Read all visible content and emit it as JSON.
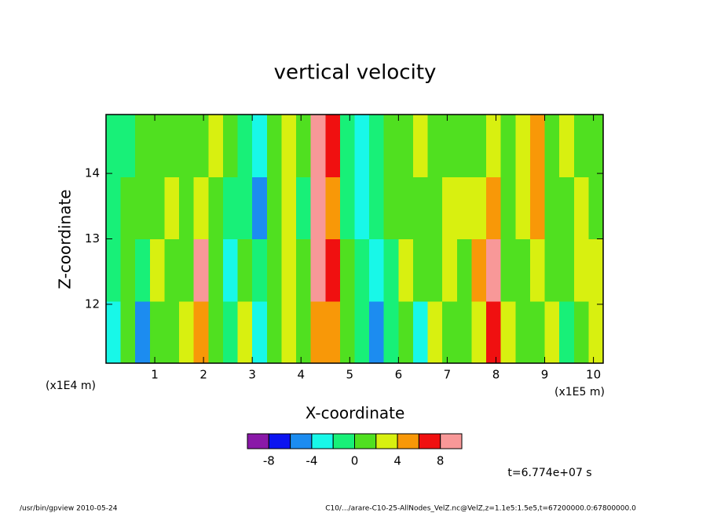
{
  "chart_data": {
    "type": "heatmap",
    "title": "vertical velocity",
    "x_label": "X-coordinate",
    "y_label": "Z-coordinate",
    "x_unit": "(x1E5 m)",
    "y_unit": "(x1E4 m)",
    "x": [
      0.15,
      0.45,
      0.75,
      1.05,
      1.35,
      1.65,
      1.95,
      2.25,
      2.55,
      2.85,
      3.15,
      3.45,
      3.75,
      4.05,
      4.35,
      4.65,
      4.95,
      5.25,
      5.55,
      5.85,
      6.15,
      6.45,
      6.75,
      7.05,
      7.35,
      7.65,
      7.95,
      8.25,
      8.55,
      8.85,
      9.15,
      9.45,
      9.75,
      10.05
    ],
    "y": [
      11.575,
      12.525,
      13.475,
      14.425
    ],
    "values": [
      [
        -3,
        0,
        -5,
        1,
        0,
        2,
        5,
        1,
        -2,
        2,
        -3,
        0,
        3,
        1,
        5,
        4,
        1,
        -2,
        -5,
        -1,
        1,
        -3,
        2,
        1,
        0,
        3,
        6,
        2,
        0,
        1,
        2,
        -1,
        1,
        2
      ],
      [
        -2,
        1,
        -2,
        2,
        1,
        1,
        8,
        1,
        -3,
        0,
        -2,
        1,
        2,
        0,
        8,
        6,
        0,
        -2,
        -3,
        -1,
        2,
        0,
        1,
        3,
        1,
        4,
        8,
        1,
        1,
        2,
        1,
        0,
        2,
        3
      ],
      [
        -2,
        0,
        0,
        1,
        2,
        0,
        3,
        0,
        -1,
        -2,
        -5,
        1,
        3,
        -1,
        9,
        5,
        -1,
        -3,
        -2,
        0,
        1,
        1,
        0,
        2,
        2,
        2,
        4,
        1,
        3,
        4,
        0,
        1,
        2,
        1
      ],
      [
        -1,
        -1,
        1,
        0,
        1,
        1,
        1,
        2,
        0,
        -1,
        -3,
        0,
        2,
        0,
        9,
        7,
        -2,
        -3,
        -2,
        1,
        0,
        2,
        1,
        1,
        0,
        1,
        2,
        0,
        2,
        5,
        1,
        2,
        1,
        0
      ]
    ],
    "xlim": [
      0,
      10.2
    ],
    "ylim": [
      11.1,
      14.9
    ],
    "xticks": [
      1,
      2,
      3,
      4,
      5,
      6,
      7,
      8,
      9,
      10
    ],
    "yticks": [
      12,
      13,
      14
    ],
    "levels": [
      -10,
      -8,
      -6,
      -4,
      -2,
      0,
      2,
      4,
      6,
      8,
      10
    ],
    "colors": [
      "#8a18a8",
      "#0c14f0",
      "#1c8cf0",
      "#18f8e8",
      "#18f078",
      "#50e020",
      "#d8f010",
      "#f89808",
      "#f01010",
      "#f89898"
    ],
    "colorbar_ticks": [
      -8,
      -4,
      0,
      4,
      8
    ],
    "annotation": "t=6.774e+07 s",
    "footer_left": "/usr/bin/gpview  2010-05-24",
    "footer_right": "C10/.../arare-C10-25-AllNodes_VelZ.nc@VelZ,z=1.1e5:1.5e5,t=67200000.0:67800000.0"
  }
}
